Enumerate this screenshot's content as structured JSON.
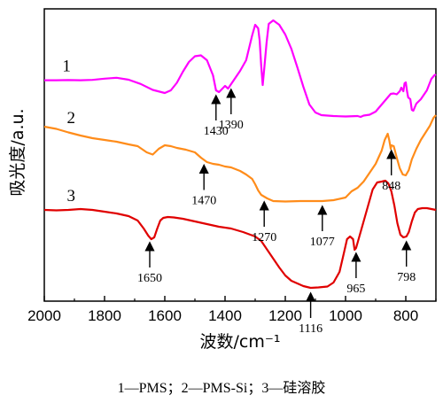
{
  "caption": "1—PMS；2—PMS-Si；3—硅溶胶",
  "chart_data": {
    "type": "line",
    "xlabel": "波数/cm⁻¹",
    "ylabel": "吸光度/a.u.",
    "xlim": [
      2000,
      700
    ],
    "x_reversed": true,
    "xticks": [
      2000,
      1800,
      1600,
      1400,
      1200,
      1000,
      800
    ],
    "colors": {
      "series_1": "#ff00ff",
      "series_2": "#ff8c1a",
      "series_3": "#e00000",
      "axis": "#000000"
    },
    "series": [
      {
        "name": "1",
        "color": "#ff00ff",
        "points": [
          [
            2000,
            90.6
          ],
          [
            1960,
            90.6
          ],
          [
            1920,
            90.4
          ],
          [
            1880,
            90.6
          ],
          [
            1840,
            90.2
          ],
          [
            1800,
            88.8
          ],
          [
            1760,
            87.8
          ],
          [
            1720,
            90.0
          ],
          [
            1680,
            94.8
          ],
          [
            1640,
            101.5
          ],
          [
            1600,
            105.0
          ],
          [
            1580,
            102.0
          ],
          [
            1560,
            93.5
          ],
          [
            1540,
            81.0
          ],
          [
            1520,
            70.0
          ],
          [
            1500,
            63.5
          ],
          [
            1480,
            62.5
          ],
          [
            1460,
            68.0
          ],
          [
            1440,
            85.0
          ],
          [
            1430,
            102.0
          ],
          [
            1420,
            104.0
          ],
          [
            1400,
            97.0
          ],
          [
            1390,
            100.0
          ],
          [
            1370,
            90.0
          ],
          [
            1350,
            80.0
          ],
          [
            1330,
            68.0
          ],
          [
            1310,
            40.0
          ],
          [
            1300,
            28.0
          ],
          [
            1290,
            32.0
          ],
          [
            1285,
            46.0
          ],
          [
            1280,
            74.0
          ],
          [
            1275,
            96.0
          ],
          [
            1270,
            78.0
          ],
          [
            1262,
            48.0
          ],
          [
            1255,
            27.0
          ],
          [
            1240,
            23.0
          ],
          [
            1220,
            28.0
          ],
          [
            1200,
            39.0
          ],
          [
            1180,
            55.0
          ],
          [
            1160,
            76.0
          ],
          [
            1140,
            98.0
          ],
          [
            1120,
            118.0
          ],
          [
            1100,
            127.0
          ],
          [
            1080,
            130.0
          ],
          [
            1040,
            131.0
          ],
          [
            1000,
            131.5
          ],
          [
            960,
            131.0
          ],
          [
            950,
            132.0
          ],
          [
            940,
            130.5
          ],
          [
            920,
            129.5
          ],
          [
            900,
            126.0
          ],
          [
            880,
            118.0
          ],
          [
            860,
            110.0
          ],
          [
            850,
            106.0
          ],
          [
            840,
            105.5
          ],
          [
            830,
            106.5
          ],
          [
            820,
            103.0
          ],
          [
            815,
            99.0
          ],
          [
            808,
            103.0
          ],
          [
            804,
            94.0
          ],
          [
            800,
            93.0
          ],
          [
            796,
            103.0
          ],
          [
            792,
            110.0
          ],
          [
            785,
            112.0
          ],
          [
            780,
            124.0
          ],
          [
            775,
            125.0
          ],
          [
            765,
            117.0
          ],
          [
            750,
            112.0
          ],
          [
            730,
            102.0
          ],
          [
            715,
            89.0
          ],
          [
            705,
            85.0
          ],
          [
            700,
            84.0
          ]
        ]
      },
      {
        "name": "2",
        "color": "#ff8c1a",
        "points": [
          [
            2000,
            143.0
          ],
          [
            1960,
            145.5
          ],
          [
            1920,
            149.5
          ],
          [
            1880,
            153.0
          ],
          [
            1840,
            156.0
          ],
          [
            1800,
            158.0
          ],
          [
            1760,
            160.0
          ],
          [
            1720,
            163.0
          ],
          [
            1690,
            165.0
          ],
          [
            1660,
            172.0
          ],
          [
            1640,
            174.5
          ],
          [
            1620,
            168.0
          ],
          [
            1600,
            164.0
          ],
          [
            1580,
            165.0
          ],
          [
            1560,
            167.0
          ],
          [
            1530,
            169.0
          ],
          [
            1500,
            172.0
          ],
          [
            1480,
            178.0
          ],
          [
            1460,
            183.0
          ],
          [
            1440,
            185.0
          ],
          [
            1420,
            186.0
          ],
          [
            1400,
            188.0
          ],
          [
            1380,
            189.0
          ],
          [
            1350,
            193.0
          ],
          [
            1330,
            197.0
          ],
          [
            1310,
            202.0
          ],
          [
            1300,
            208.0
          ],
          [
            1290,
            215.0
          ],
          [
            1280,
            220.0
          ],
          [
            1270,
            222.0
          ],
          [
            1260,
            224.0
          ],
          [
            1240,
            227.0
          ],
          [
            1200,
            227.5
          ],
          [
            1150,
            227.0
          ],
          [
            1100,
            227.0
          ],
          [
            1077,
            227.0
          ],
          [
            1040,
            226.0
          ],
          [
            1000,
            223.0
          ],
          [
            980,
            216.0
          ],
          [
            960,
            212.0
          ],
          [
            940,
            205.0
          ],
          [
            920,
            195.0
          ],
          [
            900,
            185.0
          ],
          [
            880,
            170.0
          ],
          [
            870,
            158.0
          ],
          [
            860,
            151.0
          ],
          [
            855,
            158.0
          ],
          [
            850,
            168.0
          ],
          [
            848,
            164.0
          ],
          [
            840,
            165.0
          ],
          [
            830,
            178.0
          ],
          [
            820,
            190.0
          ],
          [
            810,
            197.0
          ],
          [
            800,
            198.0
          ],
          [
            790,
            192.0
          ],
          [
            780,
            180.0
          ],
          [
            765,
            168.0
          ],
          [
            750,
            158.0
          ],
          [
            735,
            150.0
          ],
          [
            720,
            142.0
          ],
          [
            708,
            133.0
          ],
          [
            700,
            130.0
          ]
        ]
      },
      {
        "name": "3",
        "color": "#e00000",
        "points": [
          [
            2000,
            237.0
          ],
          [
            1960,
            237.5
          ],
          [
            1920,
            237.0
          ],
          [
            1880,
            236.0
          ],
          [
            1840,
            237.0
          ],
          [
            1800,
            239.0
          ],
          [
            1760,
            241.0
          ],
          [
            1720,
            244.0
          ],
          [
            1690,
            249.0
          ],
          [
            1670,
            258.0
          ],
          [
            1655,
            266.0
          ],
          [
            1645,
            270.0
          ],
          [
            1635,
            268.0
          ],
          [
            1625,
            258.0
          ],
          [
            1615,
            249.0
          ],
          [
            1605,
            246.0
          ],
          [
            1590,
            245.0
          ],
          [
            1570,
            245.5
          ],
          [
            1540,
            247.0
          ],
          [
            1500,
            250.0
          ],
          [
            1460,
            253.0
          ],
          [
            1420,
            256.0
          ],
          [
            1380,
            258.0
          ],
          [
            1340,
            262.0
          ],
          [
            1300,
            267.0
          ],
          [
            1280,
            272.0
          ],
          [
            1260,
            282.0
          ],
          [
            1240,
            292.0
          ],
          [
            1220,
            302.0
          ],
          [
            1200,
            311.0
          ],
          [
            1180,
            317.0
          ],
          [
            1160,
            320.0
          ],
          [
            1140,
            323.0
          ],
          [
            1116,
            325.0
          ],
          [
            1090,
            324.5
          ],
          [
            1060,
            323.5
          ],
          [
            1040,
            319.0
          ],
          [
            1020,
            307.0
          ],
          [
            1005,
            285.0
          ],
          [
            995,
            270.0
          ],
          [
            985,
            267.0
          ],
          [
            975,
            270.0
          ],
          [
            970,
            282.0
          ],
          [
            965,
            280.0
          ],
          [
            955,
            268.0
          ],
          [
            940,
            250.0
          ],
          [
            925,
            232.0
          ],
          [
            910,
            214.0
          ],
          [
            895,
            206.0
          ],
          [
            880,
            205.0
          ],
          [
            868,
            204.0
          ],
          [
            858,
            207.0
          ],
          [
            848,
            216.0
          ],
          [
            838,
            232.0
          ],
          [
            828,
            252.0
          ],
          [
            818,
            265.0
          ],
          [
            808,
            268.0
          ],
          [
            798,
            267.0
          ],
          [
            790,
            262.0
          ],
          [
            780,
            250.0
          ],
          [
            770,
            240.0
          ],
          [
            760,
            236.0
          ],
          [
            745,
            235.0
          ],
          [
            730,
            235.0
          ],
          [
            715,
            236.0
          ],
          [
            700,
            237.0
          ]
        ]
      }
    ],
    "series_labels": [
      {
        "text": "1",
        "x": 1940
      },
      {
        "text": "2",
        "x": 1925
      },
      {
        "text": "3",
        "x": 1925
      }
    ],
    "annotations": [
      {
        "text": "1430",
        "x": 1430
      },
      {
        "text": "1390",
        "x": 1380
      },
      {
        "text": "1470",
        "x": 1470
      },
      {
        "text": "1270",
        "x": 1270
      },
      {
        "text": "1077",
        "x": 1077
      },
      {
        "text": "848",
        "x": 848
      },
      {
        "text": "1650",
        "x": 1650
      },
      {
        "text": "1116",
        "x": 1116
      },
      {
        "text": "965",
        "x": 965
      },
      {
        "text": "798",
        "x": 798
      }
    ]
  }
}
